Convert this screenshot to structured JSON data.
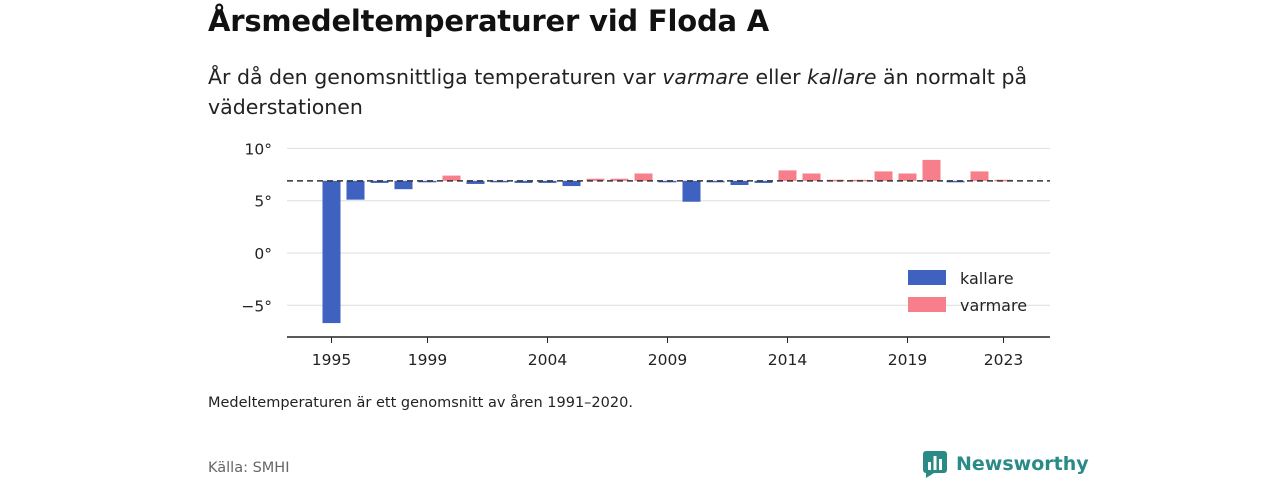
{
  "header": {
    "title": "Årsmedeltemperaturer vid Floda A",
    "subtitle_parts": [
      "År då den genomsnittliga temperaturen var ",
      "varmare",
      " eller ",
      "kallare",
      " än normalt på väderstationen"
    ]
  },
  "footer": {
    "note": "Medeltemperaturen är ett genomsnitt av åren 1991–2020.",
    "source": "Källa: SMHI",
    "brand": "Newsworthy"
  },
  "colors": {
    "colder": "#3f62c0",
    "warmer": "#f77f8c",
    "axis": "#222222",
    "grid": "#dddddd",
    "brand": "#2a8a86"
  },
  "chart_data": {
    "type": "bar",
    "baseline": 6.9,
    "ylim": [
      -8,
      11
    ],
    "yticks": [
      10,
      5,
      0,
      -5
    ],
    "ytick_labels": [
      "10°",
      "5°",
      "0°",
      "−5°"
    ],
    "xtick_years": [
      1995,
      1999,
      2004,
      2009,
      2014,
      2019,
      2023
    ],
    "xtick_labels": [
      "1995",
      "1999",
      "2004",
      "2009",
      "2014",
      "2019",
      "2023"
    ],
    "legend": [
      {
        "key": "colder",
        "label": "kallare"
      },
      {
        "key": "warmer",
        "label": "varmare"
      }
    ],
    "years": [
      1995,
      1996,
      1997,
      1998,
      1999,
      2000,
      2001,
      2002,
      2003,
      2004,
      2005,
      2006,
      2007,
      2008,
      2009,
      2010,
      2011,
      2012,
      2013,
      2014,
      2015,
      2016,
      2017,
      2018,
      2019,
      2020,
      2021,
      2022,
      2023
    ],
    "values": [
      -6.7,
      5.1,
      6.7,
      6.1,
      6.9,
      7.4,
      6.6,
      6.9,
      6.7,
      6.7,
      6.4,
      7.1,
      7.1,
      7.6,
      6.8,
      4.9,
      6.9,
      6.5,
      6.7,
      7.9,
      7.6,
      7.0,
      7.0,
      7.8,
      7.6,
      8.9,
      6.9,
      7.8,
      7.0
    ]
  }
}
